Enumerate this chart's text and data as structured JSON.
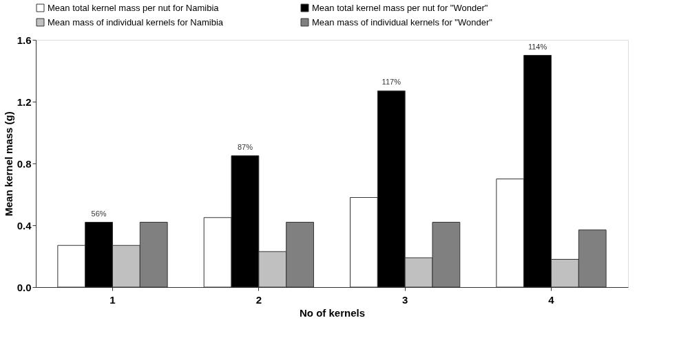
{
  "chart_data": {
    "type": "bar",
    "xlabel": "No of kernels",
    "ylabel": "Mean kernel mass (g)",
    "categories": [
      "1",
      "2",
      "3",
      "4"
    ],
    "series": [
      {
        "name": "Mean total kernel mass per nut for Namibia",
        "color": "#ffffff",
        "values": [
          0.27,
          0.45,
          0.58,
          0.7
        ]
      },
      {
        "name": "Mean total kernel mass per nut for \"Wonder\"",
        "color": "#000000",
        "values": [
          0.42,
          0.85,
          1.27,
          1.5
        ]
      },
      {
        "name": "Mean mass of individual kernels for Namibia",
        "color": "#c0c0c0",
        "values": [
          0.27,
          0.23,
          0.19,
          0.18
        ]
      },
      {
        "name": "Mean mass of individual kernels for \"Wonder\"",
        "color": "#808080",
        "values": [
          0.42,
          0.42,
          0.42,
          0.37
        ]
      }
    ],
    "annotations": [
      {
        "text": "56%",
        "x": "1",
        "y": 0.42
      },
      {
        "text": "87%",
        "x": "2",
        "y": 0.85
      },
      {
        "text": "117%",
        "x": "3",
        "y": 1.27
      },
      {
        "text": "114%",
        "x": "4",
        "y": 1.5
      }
    ],
    "ylim": [
      0,
      1.6
    ],
    "yticks": [
      {
        "value": 0,
        "label": "0.0"
      },
      0.4,
      0.8,
      1.2,
      1.6
    ],
    "grid": false,
    "legend": "top"
  }
}
